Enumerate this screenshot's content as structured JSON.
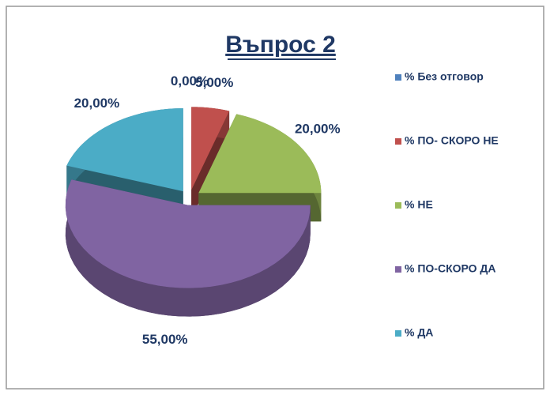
{
  "chart_data": {
    "type": "pie",
    "title": "Въпрос 2",
    "categories": [
      "% Без отговор",
      "% ПО- СКОРО НЕ",
      "% НЕ",
      "% ПО-СКОРО ДА",
      "% ДА"
    ],
    "values": [
      0,
      5,
      20,
      55,
      20
    ],
    "value_labels": [
      "0,00%",
      "5,00%",
      "20,00%",
      "55,00%",
      "20,00%"
    ],
    "colors": [
      "#4f81bd",
      "#c0504d",
      "#9bbb59",
      "#8064a2",
      "#4bacc6"
    ],
    "legend": "right"
  }
}
